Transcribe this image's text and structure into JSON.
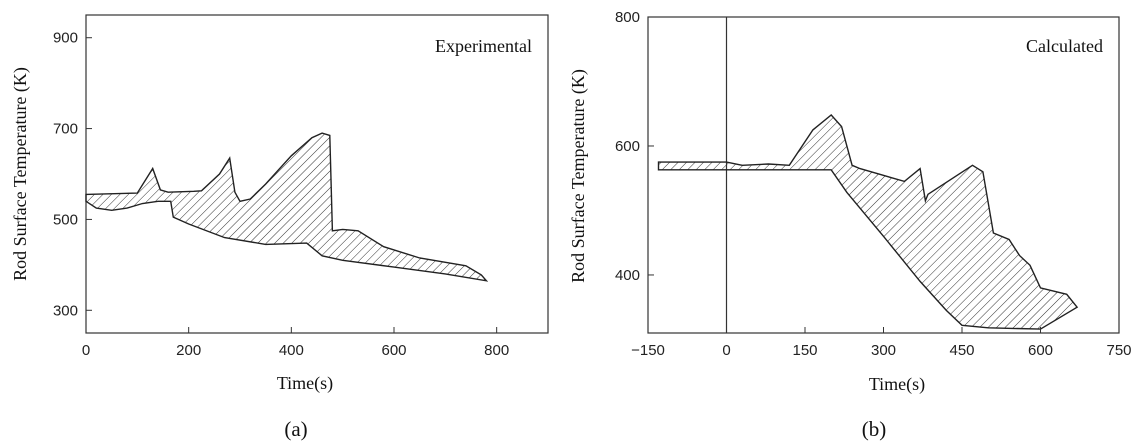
{
  "chart_data": [
    {
      "type": "area",
      "panel_caption": "(a)",
      "annotation": "Experimental",
      "xlabel": "Time(s)",
      "ylabel": "Rod Surface Temperature (K)",
      "xlim": [
        0,
        900
      ],
      "ylim": [
        250,
        950
      ],
      "xticks": [
        "0",
        "200",
        "400",
        "600",
        "800"
      ],
      "xtick_values": [
        0,
        200,
        400,
        600,
        800
      ],
      "yticks": [
        "300",
        "500",
        "700",
        "900"
      ],
      "ytick_values": [
        300,
        500,
        700,
        900
      ],
      "upper": {
        "x": [
          0,
          100,
          130,
          145,
          160,
          210,
          225,
          260,
          280,
          290,
          300,
          320,
          350,
          400,
          440,
          460,
          475,
          480,
          500,
          530,
          580,
          650,
          740,
          770
        ],
        "y": [
          555,
          558,
          612,
          565,
          560,
          562,
          563,
          600,
          635,
          560,
          540,
          545,
          578,
          640,
          680,
          690,
          685,
          475,
          478,
          475,
          440,
          415,
          398,
          378
        ]
      },
      "lower": {
        "x": [
          0,
          20,
          50,
          80,
          110,
          140,
          165,
          170,
          200,
          270,
          350,
          430,
          460,
          500,
          600,
          700,
          780
        ],
        "y": [
          540,
          525,
          520,
          525,
          535,
          540,
          540,
          505,
          490,
          460,
          445,
          448,
          420,
          410,
          395,
          380,
          365
        ]
      }
    },
    {
      "type": "area",
      "panel_caption": "(b)",
      "annotation": "Calculated",
      "xlabel": "Time(s)",
      "ylabel": "Rod Surface Temperature (K)",
      "xlim": [
        -150,
        750
      ],
      "ylim": [
        310,
        800
      ],
      "xticks": [
        "−150",
        "0",
        "150",
        "300",
        "450",
        "600",
        "750"
      ],
      "xtick_values": [
        -150,
        0,
        150,
        300,
        450,
        600,
        750
      ],
      "yticks": [
        "400",
        "600",
        "800"
      ],
      "ytick_values": [
        400,
        600,
        800
      ],
      "vertical_line_at": 0,
      "upper": {
        "x": [
          -130,
          0,
          30,
          80,
          120,
          165,
          200,
          220,
          240,
          255,
          340,
          370,
          380,
          385,
          470,
          490,
          510,
          540,
          560,
          580,
          600,
          650,
          670
        ],
        "y": [
          575,
          575,
          570,
          572,
          570,
          625,
          648,
          630,
          570,
          565,
          545,
          565,
          515,
          525,
          570,
          560,
          465,
          455,
          430,
          415,
          380,
          370,
          350
        ]
      },
      "lower": {
        "x": [
          -130,
          0,
          100,
          200,
          230,
          300,
          370,
          420,
          450,
          500,
          600,
          670
        ],
        "y": [
          563,
          563,
          563,
          563,
          528,
          460,
          390,
          345,
          322,
          318,
          316,
          350
        ]
      }
    }
  ]
}
